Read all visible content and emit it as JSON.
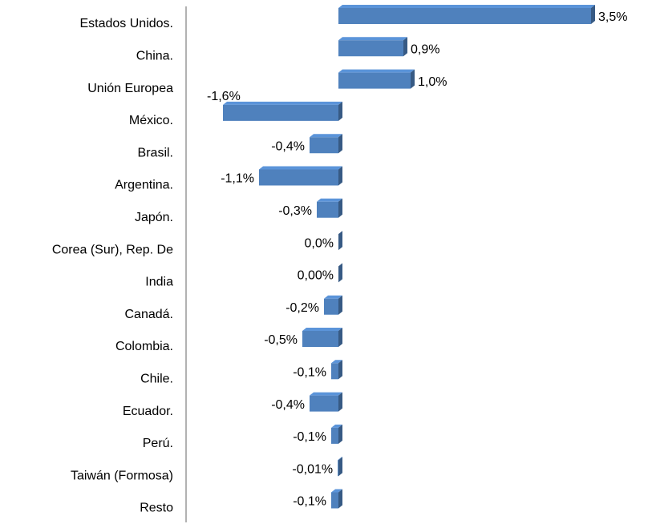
{
  "chart_data": {
    "type": "bar",
    "orientation": "horizontal",
    "categories": [
      "Estados Unidos.",
      "China.",
      "Unión Europea",
      "México.",
      "Brasil.",
      "Argentina.",
      "Japón.",
      "Corea (Sur), Rep. De",
      "India",
      "Canadá.",
      "Colombia.",
      "Chile.",
      "Ecuador.",
      "Perú.",
      "Taiwán (Formosa)",
      "Resto"
    ],
    "values": [
      3.5,
      0.9,
      1.0,
      -1.6,
      -0.4,
      -1.1,
      -0.3,
      0.0,
      0.0,
      -0.2,
      -0.5,
      -0.1,
      -0.4,
      -0.1,
      -0.01,
      -0.1
    ],
    "value_labels": [
      "3,5%",
      "0,9%",
      "1,0%",
      "-1,6%",
      "-0,4%",
      "-1,1%",
      "-0,3%",
      "0,0%",
      "0,00%",
      "-0,2%",
      "-0,5%",
      "-0,1%",
      "-0,4%",
      "-0,1%",
      "-0,01%",
      "-0,1%"
    ],
    "color": "#4f81bd"
  }
}
